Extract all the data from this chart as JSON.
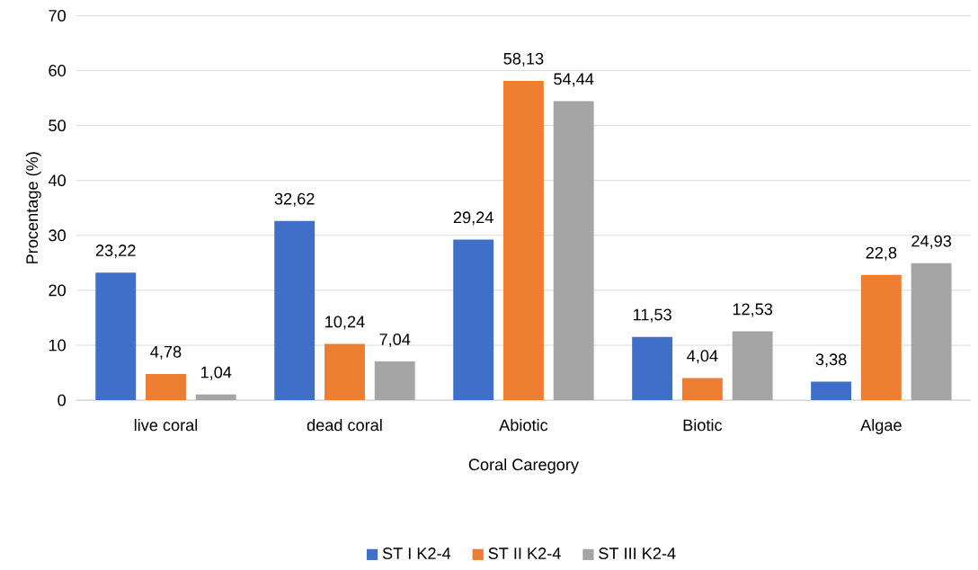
{
  "chart_data": {
    "type": "bar",
    "categories": [
      "live coral",
      "dead coral",
      "Abiotic",
      "Biotic",
      "Algae"
    ],
    "series": [
      {
        "name": "ST I K2-4",
        "color": "#3f6fc9",
        "values": [
          23.22,
          32.62,
          29.24,
          11.53,
          3.38
        ],
        "value_labels": [
          "23,22",
          "32,62",
          "29,24",
          "11,53",
          "3,38"
        ]
      },
      {
        "name": "ST II K2-4",
        "color": "#ed7d31",
        "values": [
          4.78,
          10.24,
          58.13,
          4.04,
          22.8
        ],
        "value_labels": [
          "4,78",
          "10,24",
          "58,13",
          "4,04",
          "22,8"
        ]
      },
      {
        "name": "ST III K2-4",
        "color": "#a5a5a5",
        "values": [
          1.04,
          7.04,
          54.44,
          12.53,
          24.93
        ],
        "value_labels": [
          "1,04",
          "7,04",
          "54,44",
          "12,53",
          "24,93"
        ]
      }
    ],
    "xlabel": "Coral Caregory",
    "ylabel": "Procentage (%)",
    "ylim": [
      0,
      70
    ],
    "yticks": [
      0,
      10,
      20,
      30,
      40,
      50,
      60,
      70
    ],
    "grid": "y",
    "legend": "bottom"
  }
}
